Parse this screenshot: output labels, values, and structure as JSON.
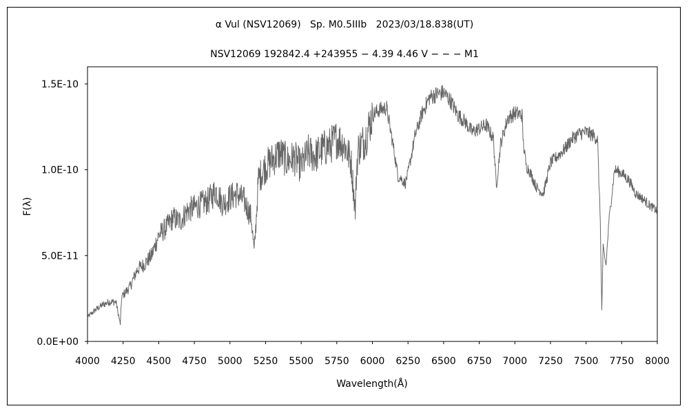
{
  "chart_data": {
    "type": "line",
    "title": "α Vul (NSV12069)   Sp. M0.5IIIb   2023/03/18.838(UT)",
    "subtitle": "NSV12069 192842.4 +243955 − 4.39 4.46 V − − − M1",
    "xlabel": "Wavelength(Å)",
    "ylabel": "F(λ)",
    "xlim": [
      4000,
      8000
    ],
    "ylim": [
      0,
      1.6e-10
    ],
    "xticks": [
      4000,
      4250,
      4500,
      4750,
      5000,
      5250,
      5500,
      5750,
      6000,
      6250,
      6500,
      6750,
      7000,
      7250,
      7500,
      7750,
      8000
    ],
    "xtick_labels": [
      "4000",
      "4250",
      "4500",
      "4750",
      "5000",
      "5250",
      "5500",
      "5750",
      "6000",
      "6250",
      "6500",
      "6750",
      "7000",
      "7250",
      "7500",
      "7750",
      "8000"
    ],
    "yticks": [
      0,
      5e-11,
      1e-10,
      1.5e-10
    ],
    "ytick_labels": [
      "0.0E+00",
      "5.0E-11",
      "1.0E-10",
      "1.5E-10"
    ],
    "grid": false,
    "legend": "none",
    "line_color": "#666666",
    "series": [
      {
        "x": [
          4000,
          4050,
          4100,
          4150,
          4200,
          4230,
          4240,
          4260,
          4300,
          4350,
          4400,
          4450,
          4500,
          4550,
          4600,
          4650,
          4700,
          4750,
          4800,
          4850,
          4900,
          4950,
          5000,
          5050,
          5100,
          5150,
          5170,
          5180,
          5200,
          5250,
          5300,
          5350,
          5400,
          5450,
          5500,
          5550,
          5600,
          5650,
          5700,
          5750,
          5800,
          5850,
          5880,
          5890,
          5900,
          5950,
          6000,
          6050,
          6100,
          6150,
          6180,
          6200,
          6230,
          6250,
          6300,
          6350,
          6400,
          6450,
          6500,
          6550,
          6600,
          6650,
          6700,
          6750,
          6800,
          6850,
          6870,
          6900,
          6950,
          7000,
          7050,
          7060,
          7080,
          7100,
          7150,
          7200,
          7250,
          7300,
          7350,
          7400,
          7450,
          7500,
          7550,
          7580,
          7600,
          7610,
          7620,
          7640,
          7660,
          7700,
          7750,
          7800,
          7850,
          7900,
          7950,
          8000
        ],
        "y": [
          1.4e-11,
          1.8e-11,
          2.1e-11,
          2.3e-11,
          2.3e-11,
          1e-11,
          2.6e-11,
          2.8e-11,
          3.2e-11,
          4.2e-11,
          4.5e-11,
          5e-11,
          6.2e-11,
          6.6e-11,
          7.2e-11,
          7e-11,
          7.6e-11,
          7.8e-11,
          8e-11,
          8.2e-11,
          8.8e-11,
          8e-11,
          8.4e-11,
          8.6e-11,
          8.2e-11,
          7.2e-11,
          5.2e-11,
          6.5e-11,
          9.5e-11,
          1.02e-10,
          1.06e-10,
          1.1e-10,
          1.05e-10,
          1.07e-10,
          1.02e-10,
          1.1e-10,
          1.08e-10,
          1.12e-10,
          1.14e-10,
          1.18e-10,
          1.15e-10,
          1.05e-10,
          7.6e-11,
          1.02e-10,
          1.12e-10,
          1.18e-10,
          1.32e-10,
          1.35e-10,
          1.36e-10,
          1.12e-10,
          9.6e-11,
          9.5e-11,
          9.2e-11,
          9.8e-11,
          1.2e-10,
          1.33e-10,
          1.42e-10,
          1.44e-10,
          1.45e-10,
          1.4e-10,
          1.32e-10,
          1.28e-10,
          1.22e-10,
          1.24e-10,
          1.26e-10,
          1.18e-10,
          9e-11,
          1.15e-10,
          1.3e-10,
          1.33e-10,
          1.32e-10,
          1.15e-10,
          1.02e-10,
          1e-10,
          9e-11,
          8.6e-11,
          1.04e-10,
          1.08e-10,
          1.12e-10,
          1.18e-10,
          1.21e-10,
          1.22e-10,
          1.2e-10,
          1.18e-10,
          7e-11,
          1.8e-11,
          5.5e-11,
          4.4e-11,
          7e-11,
          1e-10,
          9.8e-11,
          9.4e-11,
          8.6e-11,
          8.3e-11,
          7.9e-11,
          7.6e-11
        ]
      }
    ]
  }
}
